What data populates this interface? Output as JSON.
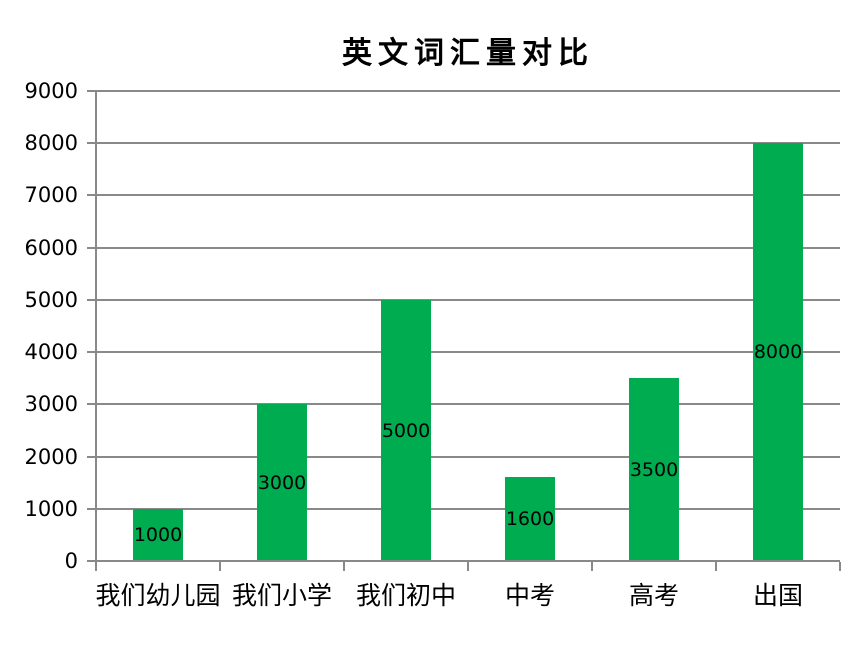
{
  "chart_data": {
    "type": "bar",
    "title": "英文词汇量对比",
    "categories": [
      "我们幼儿园",
      "我们小学",
      "我们初中",
      "中考",
      "高考",
      "出国"
    ],
    "values": [
      1000,
      3000,
      5000,
      1600,
      3500,
      8000
    ],
    "data_labels": [
      "1000",
      "3000",
      "5000",
      "1600",
      "3500",
      "8000"
    ],
    "y_tick_labels": [
      "0",
      "1000",
      "2000",
      "3000",
      "4000",
      "5000",
      "6000",
      "7000",
      "8000",
      "9000"
    ],
    "xlabel": "",
    "ylabel": "",
    "ylim": [
      0,
      9000
    ],
    "ytick_interval": 1000,
    "grid": true,
    "legend_position": "none",
    "data_label_position": "inside-center",
    "colors": {
      "bar": "#00AC50",
      "gridline": "#898989",
      "axis": "#898989",
      "text": "#000000",
      "background": "#ffffff"
    }
  }
}
